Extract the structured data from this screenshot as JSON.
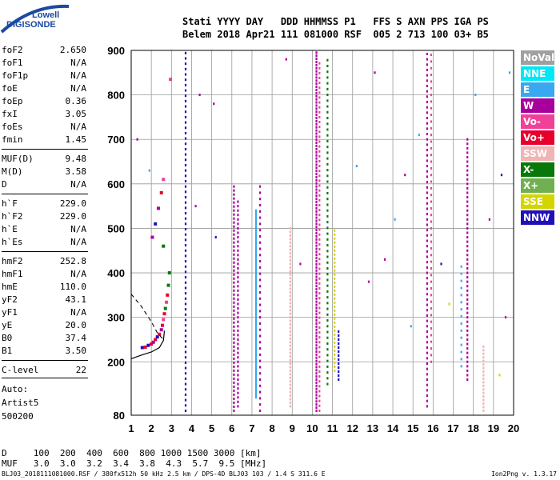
{
  "logo": {
    "line1": "Lowell",
    "line2": "DIGISONDE"
  },
  "header": {
    "line1": "Stati YYYY DAY   DDD HHMMSS P1   FFS S AXN PPS IGA PS",
    "line2": "Belem 2018 Apr21 111 081000 RSF  005 2 713 100 03+ B5"
  },
  "params": [
    {
      "k": "foF2",
      "v": "2.650"
    },
    {
      "k": "foF1",
      "v": "N/A"
    },
    {
      "k": "foF1p",
      "v": "N/A"
    },
    {
      "k": "foE",
      "v": "N/A"
    },
    {
      "k": "foEp",
      "v": "0.36"
    },
    {
      "k": "fxI",
      "v": "3.05"
    },
    {
      "k": "foEs",
      "v": "N/A"
    },
    {
      "k": "fmin",
      "v": "1.45"
    },
    {
      "k": "MUF(D)",
      "v": "9.48"
    },
    {
      "k": "M(D)",
      "v": "3.58"
    },
    {
      "k": "D",
      "v": "N/A"
    },
    {
      "k": "h`F",
      "v": "229.0"
    },
    {
      "k": "h`F2",
      "v": "229.0"
    },
    {
      "k": "h`E",
      "v": "N/A"
    },
    {
      "k": "h`Es",
      "v": "N/A"
    },
    {
      "k": "hmF2",
      "v": "252.8"
    },
    {
      "k": "hmF1",
      "v": "N/A"
    },
    {
      "k": "hmE",
      "v": "110.0"
    },
    {
      "k": "yF2",
      "v": "43.1"
    },
    {
      "k": "yF1",
      "v": "N/A"
    },
    {
      "k": "yE",
      "v": "20.0"
    },
    {
      "k": "B0",
      "v": "37.4"
    },
    {
      "k": "B1",
      "v": "3.50"
    },
    {
      "k": "C-level",
      "v": "22"
    }
  ],
  "auto": {
    "line1": "Auto:",
    "line2": "Artist5",
    "line3": "500200"
  },
  "legend": [
    {
      "label": "NoVal",
      "color": "#a0a0a0"
    },
    {
      "label": "NNE",
      "color": "#00e8f8"
    },
    {
      "label": "E",
      "color": "#38a8f0"
    },
    {
      "label": "W",
      "color": "#a8009c"
    },
    {
      "label": "Vo-",
      "color": "#f04098"
    },
    {
      "label": "Vo+",
      "color": "#e8002c"
    },
    {
      "label": "SSW",
      "color": "#f0b4b4"
    },
    {
      "label": "X-",
      "color": "#087808"
    },
    {
      "label": "X+",
      "color": "#70b050"
    },
    {
      "label": "SSE",
      "color": "#d4d400"
    },
    {
      "label": "NNW",
      "color": "#2010b8"
    }
  ],
  "footer": {
    "line1": "D     100  200  400  600  800 1000 1500 3000 [km]",
    "line2": "MUF   3.0  3.0  3.2  3.4  3.8  4.3  5.7  9.5 [MHz]",
    "credit": "BLJ03_2018111081000.RSF / 380fx512h 50 kHz 2.5 km / DPS-4D BLJ03 103 / 1.4 S 311.6 E",
    "version": "Ion2Png v. 1.3.17"
  },
  "chart_data": {
    "type": "scatter",
    "xlim": [
      1,
      20
    ],
    "ylim": [
      80,
      900
    ],
    "xticks": [
      1,
      2,
      3,
      4,
      5,
      6,
      7,
      8,
      9,
      10,
      11,
      12,
      13,
      14,
      15,
      16,
      17,
      18,
      19,
      20
    ],
    "yticks": [
      80,
      200,
      300,
      400,
      500,
      600,
      700,
      800,
      900
    ],
    "grid": true,
    "legend_position": "right",
    "columns": [
      {
        "x": 3.7,
        "y0": 90,
        "y1": 900,
        "color": "#2010b8",
        "step": 12
      },
      {
        "x": 6.1,
        "y0": 90,
        "y1": 600,
        "color": "#a8009c",
        "step": 9
      },
      {
        "x": 6.3,
        "y0": 100,
        "y1": 560,
        "color": "#a8009c",
        "step": 10
      },
      {
        "x": 7.2,
        "y0": 120,
        "y1": 540,
        "color": "#38a8f0",
        "step": 5
      },
      {
        "x": 7.4,
        "y0": 90,
        "y1": 600,
        "color": "#a8009c",
        "step": 14
      },
      {
        "x": 8.9,
        "y0": 100,
        "y1": 500,
        "color": "#f0b4b4",
        "step": 8
      },
      {
        "x": 10.2,
        "y0": 90,
        "y1": 900,
        "color": "#a8009c",
        "step": 7
      },
      {
        "x": 10.35,
        "y0": 90,
        "y1": 880,
        "color": "#f04098",
        "step": 11
      },
      {
        "x": 10.75,
        "y0": 150,
        "y1": 880,
        "color": "#087808",
        "step": 13
      },
      {
        "x": 11.1,
        "y0": 180,
        "y1": 500,
        "color": "#d4d400",
        "step": 9
      },
      {
        "x": 11.3,
        "y0": 160,
        "y1": 270,
        "color": "#2010b8",
        "step": 9
      },
      {
        "x": 15.7,
        "y0": 100,
        "y1": 900,
        "color": "#a8009c",
        "step": 12
      },
      {
        "x": 15.9,
        "y0": 200,
        "y1": 890,
        "color": "#f04098",
        "step": 15
      },
      {
        "x": 17.7,
        "y0": 160,
        "y1": 700,
        "color": "#a8009c",
        "step": 10
      },
      {
        "x": 18.5,
        "y0": 90,
        "y1": 240,
        "color": "#f0b4b4",
        "step": 8
      },
      {
        "x": 17.4,
        "y0": 190,
        "y1": 420,
        "color": "#38a8f0",
        "step": 16
      }
    ],
    "trace_points": [
      {
        "f": 1.55,
        "h": 232,
        "color": "#2010b8"
      },
      {
        "f": 1.7,
        "h": 233,
        "color": "#e8002c"
      },
      {
        "f": 1.85,
        "h": 237,
        "color": "#2010b8"
      },
      {
        "f": 2.0,
        "h": 240,
        "color": "#e8002c"
      },
      {
        "f": 2.1,
        "h": 244,
        "color": "#a8009c"
      },
      {
        "f": 2.2,
        "h": 250,
        "color": "#e8002c"
      },
      {
        "f": 2.3,
        "h": 256,
        "color": "#2010b8"
      },
      {
        "f": 2.4,
        "h": 262,
        "color": "#e8002c"
      },
      {
        "f": 2.5,
        "h": 272,
        "color": "#a8009c"
      },
      {
        "f": 2.55,
        "h": 282,
        "color": "#e8002c"
      },
      {
        "f": 2.6,
        "h": 295,
        "color": "#f04098"
      },
      {
        "f": 2.65,
        "h": 308,
        "color": "#e8002c"
      },
      {
        "f": 2.7,
        "h": 320,
        "color": "#087808"
      },
      {
        "f": 2.75,
        "h": 334,
        "color": "#f04098"
      },
      {
        "f": 2.8,
        "h": 350,
        "color": "#e8002c"
      },
      {
        "f": 2.85,
        "h": 372,
        "color": "#087808"
      },
      {
        "f": 2.05,
        "h": 480,
        "color": "#a8009c"
      },
      {
        "f": 2.2,
        "h": 510,
        "color": "#2010b8"
      },
      {
        "f": 2.35,
        "h": 545,
        "color": "#a8009c"
      },
      {
        "f": 2.5,
        "h": 580,
        "color": "#e8002c"
      },
      {
        "f": 2.6,
        "h": 610,
        "color": "#f04098"
      },
      {
        "f": 2.95,
        "h": 835,
        "color": "#f04098"
      },
      {
        "f": 2.6,
        "h": 460,
        "color": "#087808"
      },
      {
        "f": 2.9,
        "h": 400,
        "color": "#087808"
      }
    ],
    "scattered_points": [
      {
        "f": 1.3,
        "h": 700,
        "color": "#a8009c"
      },
      {
        "f": 1.9,
        "h": 630,
        "color": "#38a8f0"
      },
      {
        "f": 4.4,
        "h": 800,
        "color": "#a8009c"
      },
      {
        "f": 4.2,
        "h": 550,
        "color": "#a8009c"
      },
      {
        "f": 5.1,
        "h": 780,
        "color": "#a8009c"
      },
      {
        "f": 5.2,
        "h": 480,
        "color": "#2010b8"
      },
      {
        "f": 8.7,
        "h": 880,
        "color": "#a8009c"
      },
      {
        "f": 9.4,
        "h": 420,
        "color": "#a8009c"
      },
      {
        "f": 12.2,
        "h": 640,
        "color": "#38a8f0"
      },
      {
        "f": 13.1,
        "h": 850,
        "color": "#a8009c"
      },
      {
        "f": 13.6,
        "h": 430,
        "color": "#a8009c"
      },
      {
        "f": 14.1,
        "h": 520,
        "color": "#38a8f0"
      },
      {
        "f": 14.6,
        "h": 620,
        "color": "#a8009c"
      },
      {
        "f": 15.3,
        "h": 710,
        "color": "#38a8f0"
      },
      {
        "f": 16.8,
        "h": 330,
        "color": "#d4d400"
      },
      {
        "f": 18.1,
        "h": 800,
        "color": "#38a8f0"
      },
      {
        "f": 18.8,
        "h": 520,
        "color": "#a8009c"
      },
      {
        "f": 19.4,
        "h": 620,
        "color": "#2010b8"
      },
      {
        "f": 19.8,
        "h": 850,
        "color": "#38a8f0"
      },
      {
        "f": 19.3,
        "h": 170,
        "color": "#d4d400"
      },
      {
        "f": 12.8,
        "h": 380,
        "color": "#a8009c"
      },
      {
        "f": 14.9,
        "h": 280,
        "color": "#38a8f0"
      },
      {
        "f": 16.4,
        "h": 420,
        "color": "#2010b8"
      },
      {
        "f": 19.6,
        "h": 300,
        "color": "#a8009c"
      }
    ],
    "profile_solid": [
      [
        1.0,
        207
      ],
      [
        1.5,
        215
      ],
      [
        2.0,
        222
      ],
      [
        2.4,
        232
      ],
      [
        2.6,
        248
      ],
      [
        2.65,
        270
      ]
    ],
    "profile_dashed": [
      [
        1.0,
        352
      ],
      [
        1.5,
        325
      ],
      [
        2.0,
        290
      ],
      [
        2.3,
        265
      ],
      [
        2.5,
        255
      ],
      [
        2.65,
        250
      ]
    ]
  }
}
